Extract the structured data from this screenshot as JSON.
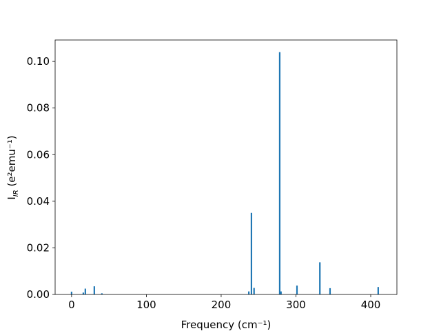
{
  "chart_data": {
    "type": "bar",
    "xlabel": "Frequency (cm⁻¹)",
    "ylabel": [
      "I",
      "IR",
      " (e²emu⁻¹)"
    ],
    "x": [
      0,
      15.7,
      18.4,
      30.4,
      40.5,
      237,
      240.5,
      244,
      278.3,
      280,
      301.4,
      332,
      345.6,
      410
    ],
    "values": [
      0.0012,
      0.0008,
      0.0025,
      0.0035,
      0.0005,
      0.0013,
      0.035,
      0.0028,
      0.104,
      0.0013,
      0.0038,
      0.0138,
      0.0027,
      0.0032
    ],
    "bar_width": 2,
    "color": "#1f77b4",
    "xlim": [
      -22,
      435
    ],
    "ylim": [
      0,
      0.1092
    ],
    "xticks": [
      0,
      100,
      200,
      300,
      400
    ],
    "yticks": [
      {
        "value": 0,
        "label": "0.00"
      },
      {
        "value": 0.02,
        "label": "0.02"
      },
      {
        "value": 0.04,
        "label": "0.04"
      },
      {
        "value": 0.06,
        "label": "0.06"
      },
      {
        "value": 0.08,
        "label": "0.08"
      },
      {
        "value": 0.1,
        "label": "0.10"
      }
    ]
  }
}
